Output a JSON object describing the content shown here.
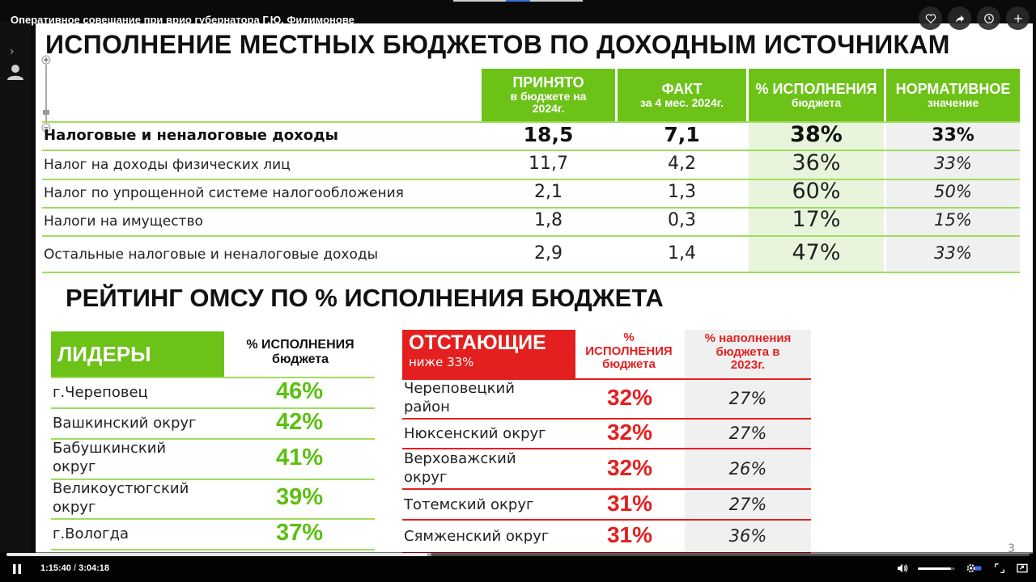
{
  "player": {
    "title": "Оперативное совещание при врио губернатора Г.Ю. Филимонове",
    "time_current": "1:15:40",
    "time_separator": " / ",
    "time_total": "3:04:18",
    "progress_fraction": 0.411,
    "buffered_fraction": 0.415,
    "volume_fraction": 0.9,
    "actions": [
      "heart-icon",
      "share-icon",
      "clock-icon",
      "plus-icon"
    ]
  },
  "slide": {
    "title": "ИСПОЛНЕНИЕ МЕСТНЫХ БЮДЖЕТОВ ПО ДОХОДНЫМ ИСТОЧНИКАМ",
    "budget_table": {
      "headers": {
        "accepted_line1": "ПРИНЯТО",
        "accepted_line2": "в бюджете на",
        "accepted_line3": "2024г.",
        "fact_line1": "ФАКТ",
        "fact_line2": "за 4 мес. 2024г.",
        "pct_line1": "% ИСПОЛНЕНИЯ",
        "pct_line2": "бюджета",
        "norm_line1": "НОРМАТИВНОЕ",
        "norm_line2": "значение"
      },
      "rows": [
        {
          "label": "Налоговые и неналоговые доходы",
          "accepted": "18,5",
          "fact": "7,1",
          "pct": "38%",
          "norm": "33%"
        },
        {
          "label": "Налог на доходы физических лиц",
          "accepted": "11,7",
          "fact": "4,2",
          "pct": "36%",
          "norm": "33%"
        },
        {
          "label": "Налог по упрощенной системе налогообложения",
          "accepted": "2,1",
          "fact": "1,3",
          "pct": "60%",
          "norm": "50%"
        },
        {
          "label": "Налоги на имущество",
          "accepted": "1,8",
          "fact": "0,3",
          "pct": "17%",
          "norm": "15%"
        },
        {
          "label": "Остальные налоговые и неналоговые доходы",
          "accepted": "2,9",
          "fact": "1,4",
          "pct": "47%",
          "norm": "33%"
        }
      ]
    },
    "rating_title": "РЕЙТИНГ ОМСУ ПО % ИСПОЛНЕНИЯ БЮДЖЕТА",
    "leaders": {
      "title": "ЛИДЕРЫ",
      "pct_header_line1": "% ИСПОЛНЕНИЯ",
      "pct_header_line2": "бюджета",
      "rows": [
        {
          "name_line1": "г.Череповец",
          "name_line2": "",
          "value": "46%"
        },
        {
          "name_line1": "Вашкинский округ",
          "name_line2": "",
          "value": "42%"
        },
        {
          "name_line1": "Бабушкинский",
          "name_line2": "округ",
          "value": "41%"
        },
        {
          "name_line1": "Великоустюгский",
          "name_line2": "округ",
          "value": "39%"
        },
        {
          "name_line1": "г.Вологда",
          "name_line2": "",
          "value": "37%"
        }
      ]
    },
    "laggers": {
      "title": "ОТСТАЮЩИЕ",
      "subtitle": "ниже 33%",
      "pct_header_line1": "%",
      "pct_header_line2": "ИСПОЛНЕНИЯ",
      "pct_header_line3": "бюджета",
      "fill_header_line1": "% наполнения",
      "fill_header_line2": "бюджета в",
      "fill_header_line3": "2023г.",
      "rows": [
        {
          "name_line1": "Череповецкий",
          "name_line2": "район",
          "value": "32%",
          "prev": "27%"
        },
        {
          "name_line1": "Нюксенский округ",
          "name_line2": "",
          "value": "32%",
          "prev": "27%"
        },
        {
          "name_line1": "Верховажский",
          "name_line2": "округ",
          "value": "32%",
          "prev": "26%"
        },
        {
          "name_line1": "Тотемский округ",
          "name_line2": "",
          "value": "31%",
          "prev": "27%"
        },
        {
          "name_line1": "Сямженский округ",
          "name_line2": "",
          "value": "31%",
          "prev": "36%"
        }
      ]
    },
    "page_number": "3"
  },
  "colors": {
    "green": "#6cc217",
    "red": "#e41f1f"
  }
}
